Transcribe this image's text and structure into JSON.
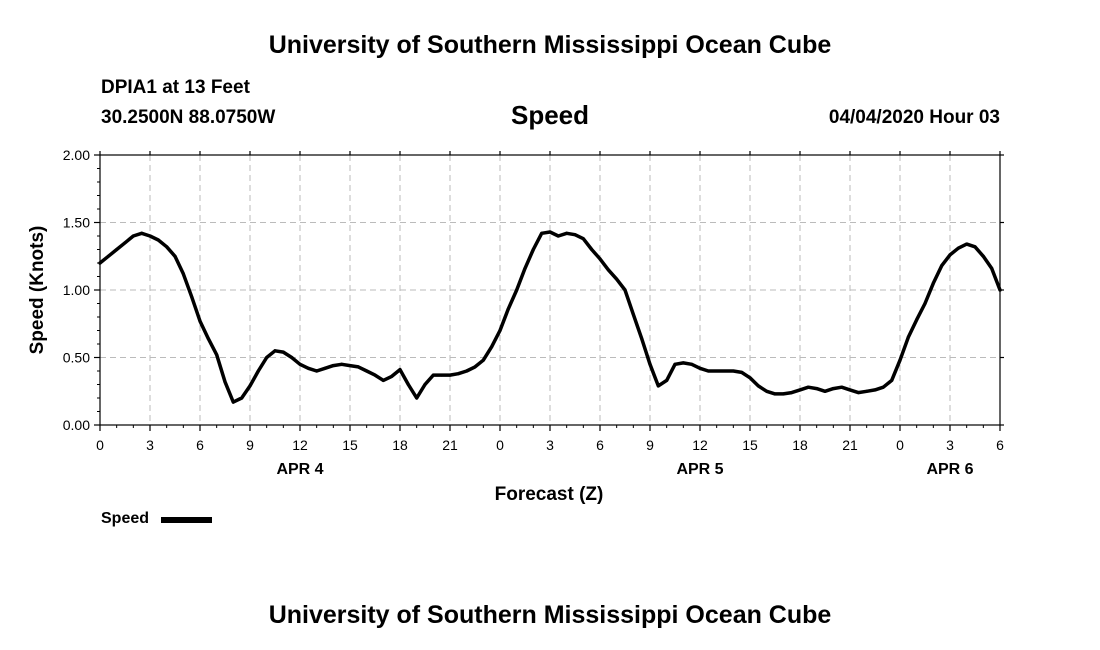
{
  "header": {
    "title_top": "University of Southern Mississippi Ocean Cube",
    "station": "DPIA1 at 13 Feet",
    "coords": "30.2500N 88.0750W",
    "datetime": "04/04/2020 Hour 03"
  },
  "footer": {
    "title_bottom": "University of Southern Mississippi Ocean Cube"
  },
  "chart_data": {
    "type": "line",
    "title": "Speed",
    "xlabel": "Forecast (Z)",
    "ylabel": "Speed (Knots)",
    "ylim": [
      0,
      2
    ],
    "yticks": [
      "0.00",
      "0.50",
      "1.00",
      "1.50",
      "2.00"
    ],
    "xlim_hours": [
      0,
      54
    ],
    "x_unit": "hours from 04/04/2020 00Z",
    "xtick_labels": [
      "0",
      "3",
      "6",
      "9",
      "12",
      "15",
      "18",
      "21",
      "0",
      "3",
      "6",
      "9",
      "12",
      "15",
      "18",
      "21",
      "0",
      "3",
      "6"
    ],
    "day_labels": [
      {
        "label": "APR 4",
        "at_hour": 12
      },
      {
        "label": "APR 5",
        "at_hour": 36
      },
      {
        "label": "APR 6",
        "at_hour": 51
      }
    ],
    "grid": true,
    "legend": "bottom-left",
    "series": [
      {
        "name": "Speed",
        "color": "#000000",
        "x": [
          0,
          0.5,
          1,
          1.5,
          2,
          2.5,
          3,
          3.5,
          4,
          4.5,
          5,
          5.5,
          6,
          6.5,
          7,
          7.5,
          8,
          8.5,
          9,
          9.5,
          10,
          10.5,
          11,
          11.5,
          12,
          12.5,
          13,
          13.5,
          14,
          14.5,
          15,
          15.5,
          16,
          16.5,
          17,
          17.5,
          18,
          18.5,
          19,
          19.5,
          20,
          20.5,
          21,
          21.5,
          22,
          22.5,
          23,
          23.5,
          24,
          24.5,
          25,
          25.5,
          26,
          26.5,
          27,
          27.5,
          28,
          28.5,
          29,
          29.5,
          30,
          30.5,
          31,
          31.5,
          32,
          32.5,
          33,
          33.5,
          34,
          34.5,
          35,
          35.5,
          36,
          36.5,
          37,
          37.5,
          38,
          38.5,
          39,
          39.5,
          40,
          40.5,
          41,
          41.5,
          42,
          42.5,
          43,
          43.5,
          44,
          44.5,
          45,
          45.5,
          46,
          46.5,
          47,
          47.5,
          48,
          48.5,
          49,
          49.5,
          50,
          50.5,
          51,
          51.5,
          52,
          52.5,
          53,
          53.5,
          54
        ],
        "values": [
          1.2,
          1.25,
          1.3,
          1.35,
          1.4,
          1.42,
          1.4,
          1.37,
          1.32,
          1.25,
          1.12,
          0.95,
          0.77,
          0.64,
          0.52,
          0.32,
          0.17,
          0.2,
          0.29,
          0.4,
          0.5,
          0.55,
          0.54,
          0.5,
          0.45,
          0.42,
          0.4,
          0.42,
          0.44,
          0.45,
          0.44,
          0.43,
          0.4,
          0.37,
          0.33,
          0.36,
          0.41,
          0.3,
          0.2,
          0.3,
          0.37,
          0.37,
          0.37,
          0.38,
          0.4,
          0.43,
          0.48,
          0.58,
          0.7,
          0.86,
          1.0,
          1.16,
          1.3,
          1.42,
          1.43,
          1.4,
          1.42,
          1.41,
          1.38,
          1.3,
          1.23,
          1.15,
          1.08,
          1.0,
          0.82,
          0.64,
          0.45,
          0.29,
          0.33,
          0.45,
          0.46,
          0.45,
          0.42,
          0.4,
          0.4,
          0.4,
          0.4,
          0.39,
          0.35,
          0.29,
          0.25,
          0.23,
          0.23,
          0.24,
          0.26,
          0.28,
          0.27,
          0.25,
          0.27,
          0.28,
          0.26,
          0.24,
          0.25,
          0.26,
          0.28,
          0.33,
          0.48,
          0.65,
          0.78,
          0.9,
          1.05,
          1.18,
          1.26,
          1.31,
          1.34,
          1.32,
          1.25,
          1.16,
          1.0
        ]
      }
    ]
  }
}
